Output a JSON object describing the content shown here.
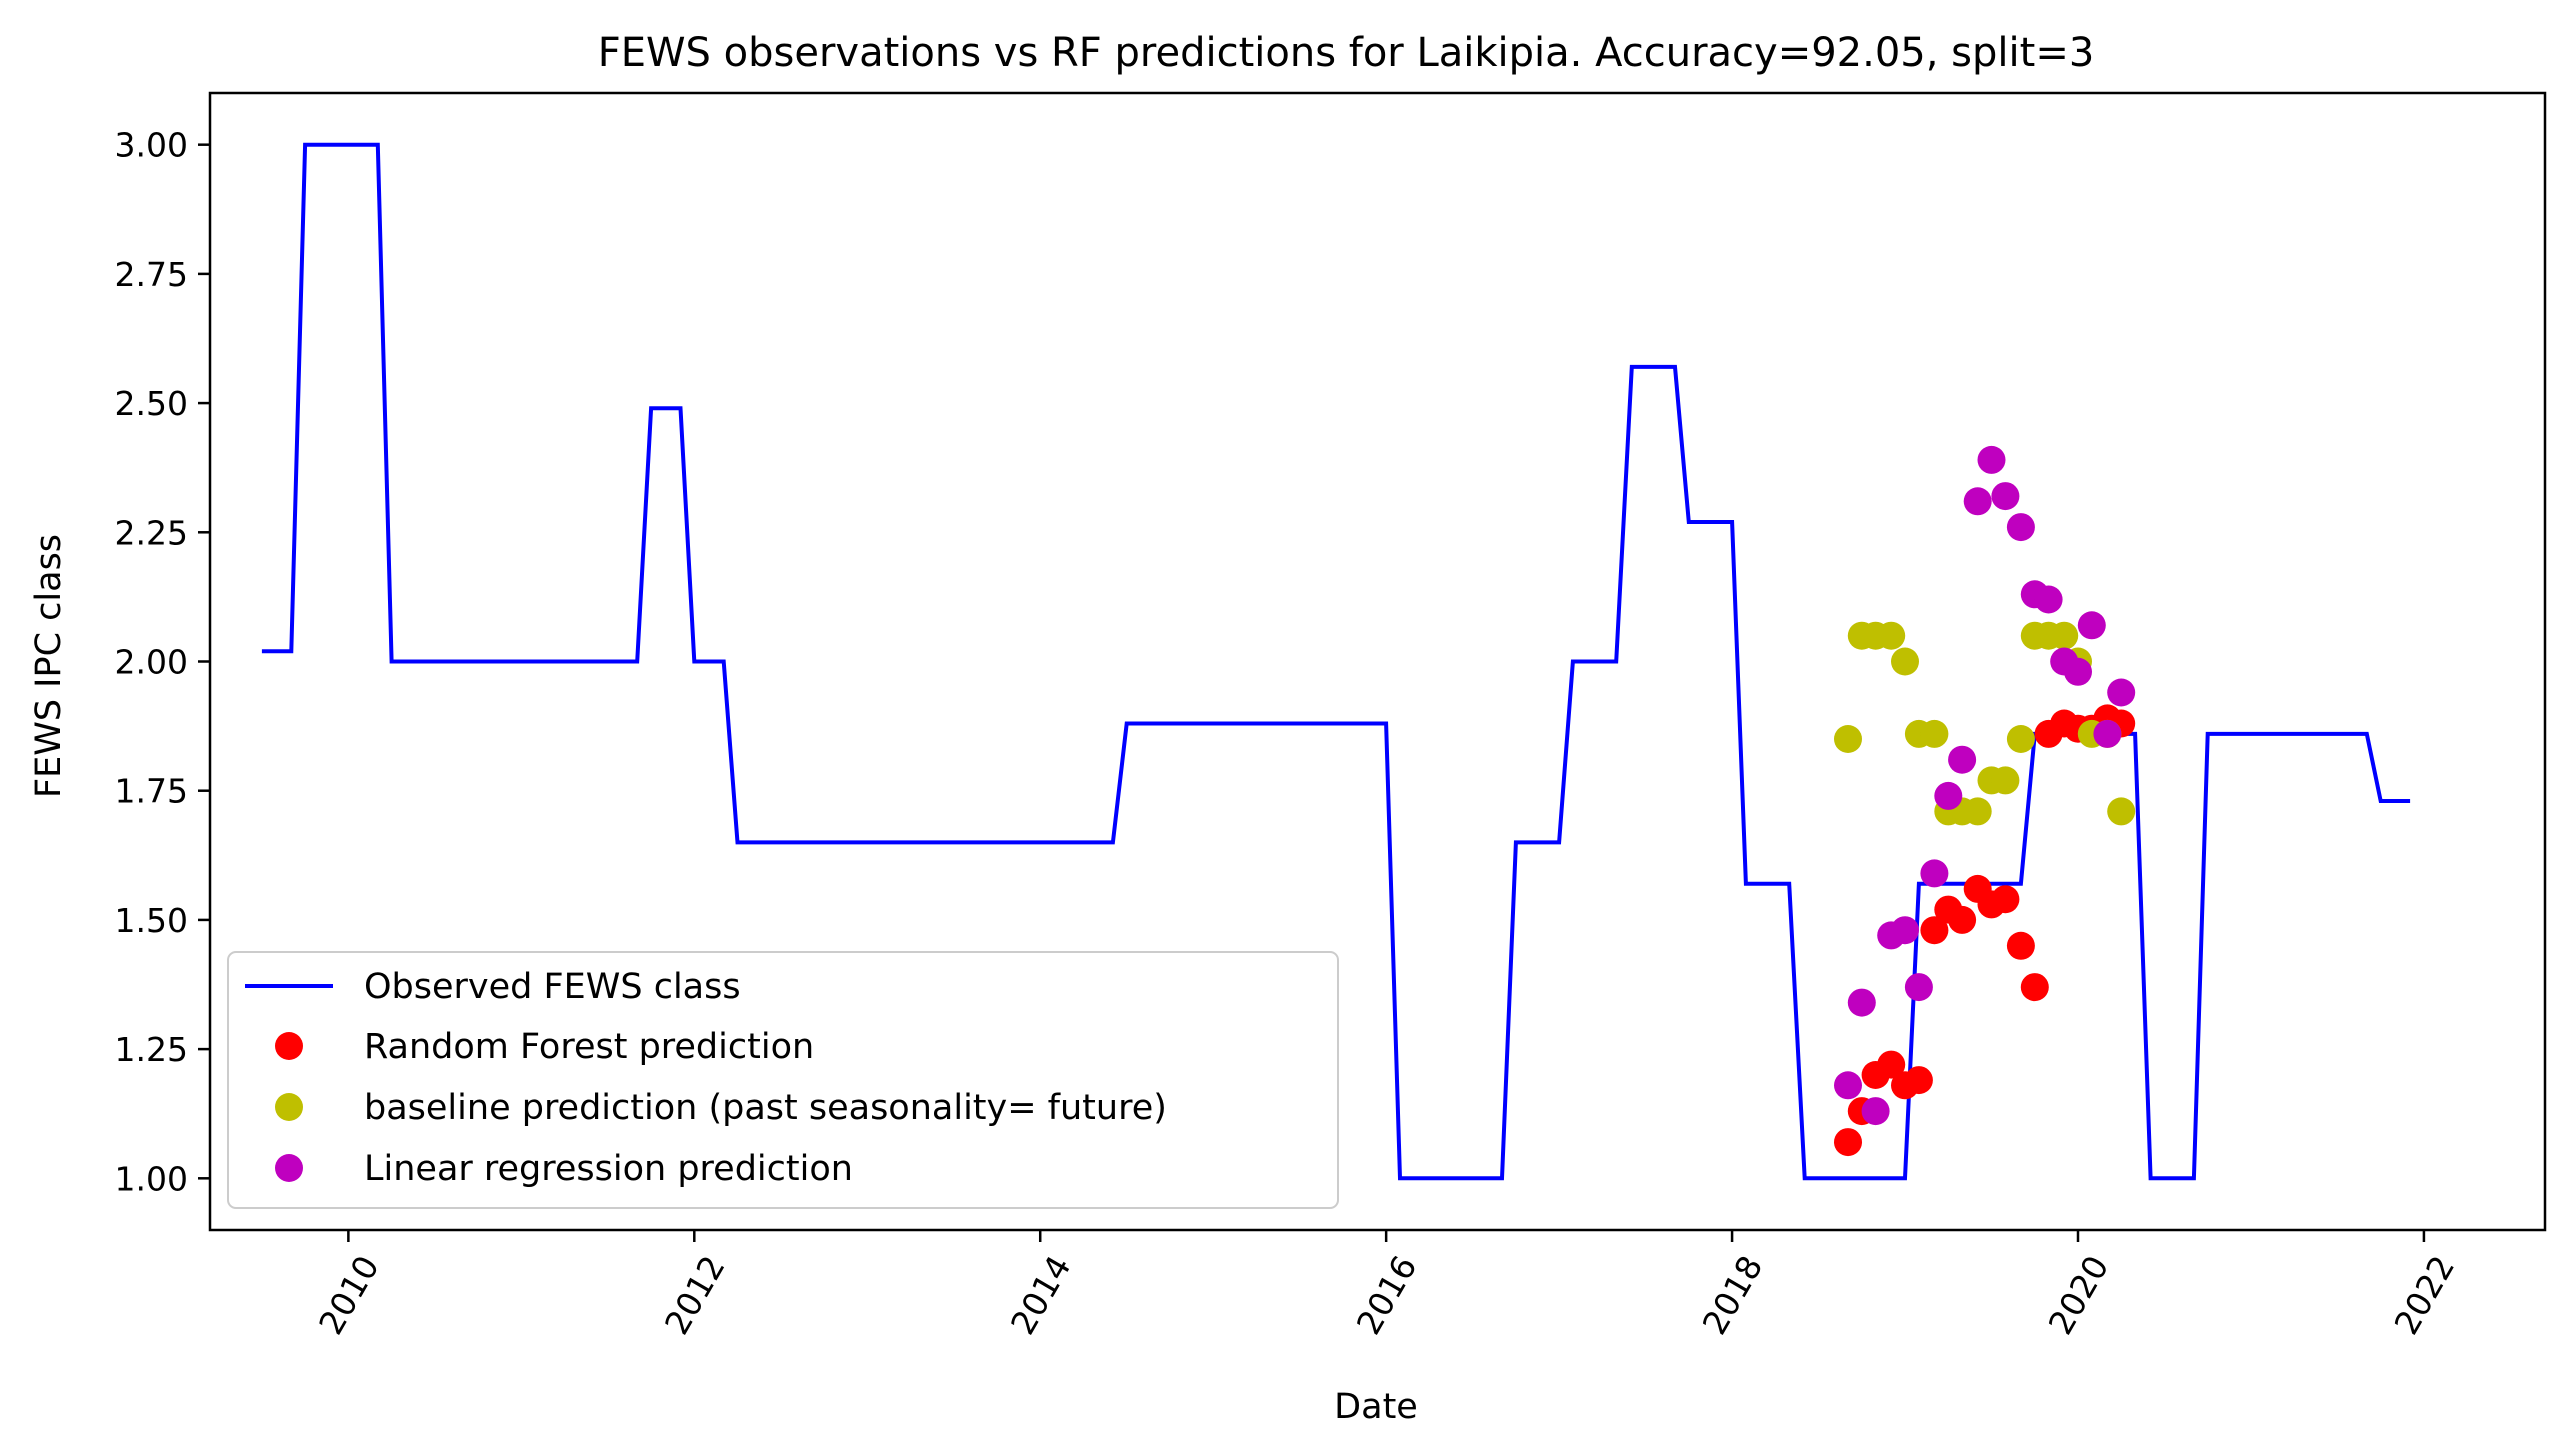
{
  "chart_data": {
    "type": "line",
    "title": "FEWS observations vs RF predictions for Laikipia. Accuracy=92.05, split=3",
    "xlabel": "Date",
    "ylabel": "FEWS IPC class",
    "xlim": [
      2009.2,
      2022.7
    ],
    "ylim": [
      0.9,
      3.1
    ],
    "xticks": [
      "2010",
      "2012",
      "2014",
      "2016",
      "2018",
      "2020",
      "2022"
    ],
    "yticks": [
      "1.00",
      "1.25",
      "1.50",
      "1.75",
      "2.00",
      "2.25",
      "2.50",
      "2.75",
      "3.00"
    ],
    "legend_position": "lower-left",
    "grid": false,
    "colors": {
      "observed": "#0000ff",
      "rf": "#ff0000",
      "baseline": "#bfbf00",
      "linreg": "#bf00bf"
    },
    "series": [
      {
        "name": "Observed FEWS class",
        "style": "line",
        "color": "#0000ff",
        "x": [
          2009.5,
          2009.67,
          2009.75,
          2010.17,
          2010.25,
          2011.67,
          2011.75,
          2011.92,
          2012.0,
          2012.17,
          2012.25,
          2014.42,
          2014.5,
          2016.0,
          2016.08,
          2016.67,
          2016.75,
          2017.0,
          2017.08,
          2017.33,
          2017.42,
          2017.67,
          2017.75,
          2018.0,
          2018.08,
          2018.33,
          2018.42,
          2019.0,
          2019.08,
          2019.67,
          2019.75,
          2020.33,
          2020.42,
          2020.67,
          2020.75,
          2021.67,
          2021.75,
          2021.92
        ],
        "values": [
          2.02,
          2.02,
          3.0,
          3.0,
          2.0,
          2.0,
          2.49,
          2.49,
          2.0,
          2.0,
          1.65,
          1.65,
          1.88,
          1.88,
          1.0,
          1.0,
          1.65,
          1.65,
          2.0,
          2.0,
          2.57,
          2.57,
          2.27,
          2.27,
          1.57,
          1.57,
          1.0,
          1.0,
          1.57,
          1.57,
          1.86,
          1.86,
          1.0,
          1.0,
          1.86,
          1.86,
          1.73,
          1.73
        ]
      },
      {
        "name": "Random Forest prediction",
        "style": "markers",
        "color": "#ff0000",
        "x": [
          2018.67,
          2018.75,
          2018.83,
          2018.92,
          2019.0,
          2019.08,
          2019.17,
          2019.25,
          2019.33,
          2019.42,
          2019.5,
          2019.58,
          2019.67,
          2019.75,
          2019.83,
          2019.92,
          2020.0,
          2020.08,
          2020.17,
          2020.25
        ],
        "values": [
          1.07,
          1.13,
          1.2,
          1.22,
          1.18,
          1.19,
          1.48,
          1.52,
          1.5,
          1.56,
          1.53,
          1.54,
          1.45,
          1.37,
          1.86,
          1.88,
          1.87,
          1.87,
          1.89,
          1.88
        ]
      },
      {
        "name": "baseline prediction (past seasonality= future)",
        "style": "markers",
        "color": "#bfbf00",
        "x": [
          2018.67,
          2018.75,
          2018.83,
          2018.92,
          2019.0,
          2019.08,
          2019.17,
          2019.25,
          2019.33,
          2019.42,
          2019.5,
          2019.58,
          2019.67,
          2019.75,
          2019.83,
          2019.92,
          2020.0,
          2020.08,
          2020.17,
          2020.25
        ],
        "values": [
          1.85,
          2.05,
          2.05,
          2.05,
          2.0,
          1.86,
          1.86,
          1.71,
          1.71,
          1.71,
          1.77,
          1.77,
          1.85,
          2.05,
          2.05,
          2.05,
          2.0,
          1.86,
          1.86,
          1.71
        ]
      },
      {
        "name": "Linear regression prediction",
        "style": "markers",
        "color": "#bf00bf",
        "x": [
          2018.67,
          2018.75,
          2018.83,
          2018.92,
          2019.0,
          2019.08,
          2019.17,
          2019.25,
          2019.33,
          2019.42,
          2019.5,
          2019.58,
          2019.67,
          2019.75,
          2019.83,
          2019.92,
          2020.0,
          2020.08,
          2020.17,
          2020.25
        ],
        "values": [
          1.18,
          1.34,
          1.13,
          1.47,
          1.48,
          1.37,
          1.59,
          1.74,
          1.81,
          2.31,
          2.39,
          2.32,
          2.26,
          2.13,
          2.12,
          2.0,
          1.98,
          2.07,
          1.86,
          1.94
        ]
      }
    ]
  }
}
